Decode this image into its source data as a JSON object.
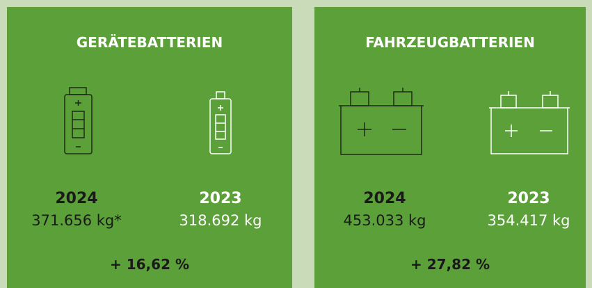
{
  "panels": [
    {
      "title": "GERÄTEBATTERIEN",
      "items": [
        {
          "year": "2024",
          "value": "371.656 kg*"
        },
        {
          "year": "2023",
          "value": "318.692 kg"
        }
      ],
      "change": "+ 16,62 %"
    },
    {
      "title": "FAHRZEUGBATTERIEN",
      "items": [
        {
          "year": "2024",
          "value": "453.033 kg"
        },
        {
          "year": "2023",
          "value": "354.417 kg"
        }
      ],
      "change": "+ 27,82 %"
    }
  ]
}
